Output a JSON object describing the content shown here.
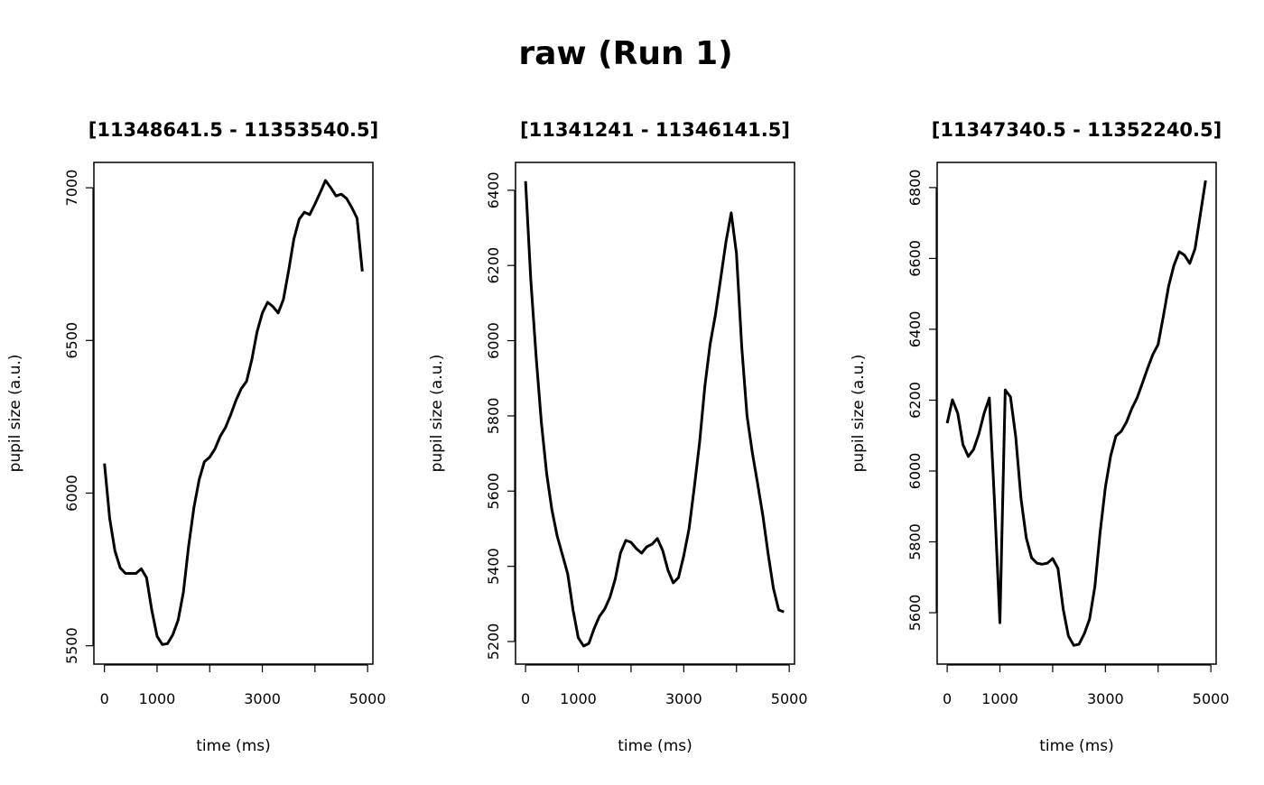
{
  "title": "raw (Run 1)",
  "chart_data": [
    {
      "type": "line",
      "title": "[11348641.5 - 11353540.5]",
      "xlabel": "time (ms)",
      "ylabel": "pupil size (a.u.)",
      "xlim": [
        -200,
        5100
      ],
      "ylim": [
        5440,
        7083
      ],
      "xticks": [
        0,
        1000,
        2000,
        3000,
        4000,
        5000
      ],
      "xtick_labels": [
        "0",
        "1000",
        "",
        "3000",
        "",
        "5000"
      ],
      "yticks": [
        5500,
        6000,
        6500,
        7000
      ],
      "ytick_labels": [
        "5500",
        "6000",
        "6500",
        "7000"
      ],
      "x_start": 0,
      "x_step": 100,
      "values": [
        6097,
        5917,
        5811,
        5755,
        5737,
        5737,
        5737,
        5752,
        5723,
        5617,
        5531,
        5504,
        5507,
        5537,
        5584,
        5675,
        5826,
        5953,
        6044,
        6103,
        6118,
        6145,
        6186,
        6215,
        6257,
        6304,
        6342,
        6366,
        6437,
        6528,
        6590,
        6625,
        6611,
        6590,
        6634,
        6729,
        6832,
        6897,
        6920,
        6912,
        6947,
        6985,
        7024,
        7000,
        6973,
        6979,
        6965,
        6935,
        6900,
        6726
      ]
    },
    {
      "type": "line",
      "title": "[11341241 - 11346141.5]",
      "xlabel": "time (ms)",
      "ylabel": "pupil size (a.u.)",
      "xlim": [
        -190,
        5100
      ],
      "ylim": [
        5140,
        6474
      ],
      "xticks": [
        0,
        1000,
        2000,
        3000,
        4000,
        5000
      ],
      "xtick_labels": [
        "0",
        "1000",
        "",
        "3000",
        "",
        "5000"
      ],
      "yticks": [
        5200,
        5400,
        5600,
        5800,
        6000,
        6200,
        6400
      ],
      "ytick_labels": [
        "5200",
        "5400",
        "5600",
        "5800",
        "6000",
        "6200",
        "6400"
      ],
      "x_start": 0,
      "x_step": 100,
      "values": [
        6424,
        6162,
        5958,
        5783,
        5646,
        5550,
        5481,
        5430,
        5380,
        5284,
        5210,
        5188,
        5195,
        5234,
        5267,
        5286,
        5318,
        5366,
        5435,
        5469,
        5464,
        5447,
        5435,
        5452,
        5459,
        5474,
        5442,
        5390,
        5356,
        5370,
        5428,
        5500,
        5610,
        5730,
        5879,
        5990,
        6069,
        6165,
        6263,
        6340,
        6232,
        5982,
        5800,
        5702,
        5620,
        5534,
        5433,
        5342,
        5284,
        5279
      ]
    },
    {
      "type": "line",
      "title": "[11347340.5 - 11352240.5]",
      "xlabel": "time (ms)",
      "ylabel": "pupil size (a.u.)",
      "xlim": [
        -190,
        5100
      ],
      "ylim": [
        5455,
        6871
      ],
      "xticks": [
        0,
        1000,
        2000,
        3000,
        4000,
        5000
      ],
      "xtick_labels": [
        "0",
        "1000",
        "",
        "3000",
        "",
        "5000"
      ],
      "yticks": [
        5600,
        5800,
        6000,
        6200,
        6400,
        6600,
        6800
      ],
      "ytick_labels": [
        "5600",
        "5800",
        "6000",
        "6200",
        "6400",
        "6600",
        "6800"
      ],
      "x_start": 0,
      "x_step": 100,
      "values": [
        6135,
        6201,
        6163,
        6074,
        6041,
        6061,
        6104,
        6163,
        6206,
        5903,
        5572,
        6229,
        6209,
        6097,
        5921,
        5811,
        5755,
        5740,
        5737,
        5740,
        5753,
        5725,
        5610,
        5534,
        5508,
        5511,
        5541,
        5582,
        5674,
        5827,
        5954,
        6043,
        6099,
        6112,
        6138,
        6176,
        6206,
        6247,
        6290,
        6329,
        6357,
        6438,
        6522,
        6581,
        6619,
        6609,
        6586,
        6627,
        6724,
        6820
      ]
    }
  ]
}
